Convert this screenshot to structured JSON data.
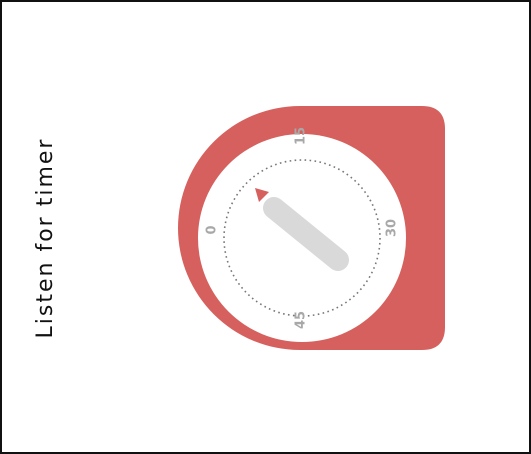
{
  "prompt": "Listen for timer",
  "dial": {
    "labels": [
      "0",
      "15",
      "30",
      "45"
    ]
  }
}
